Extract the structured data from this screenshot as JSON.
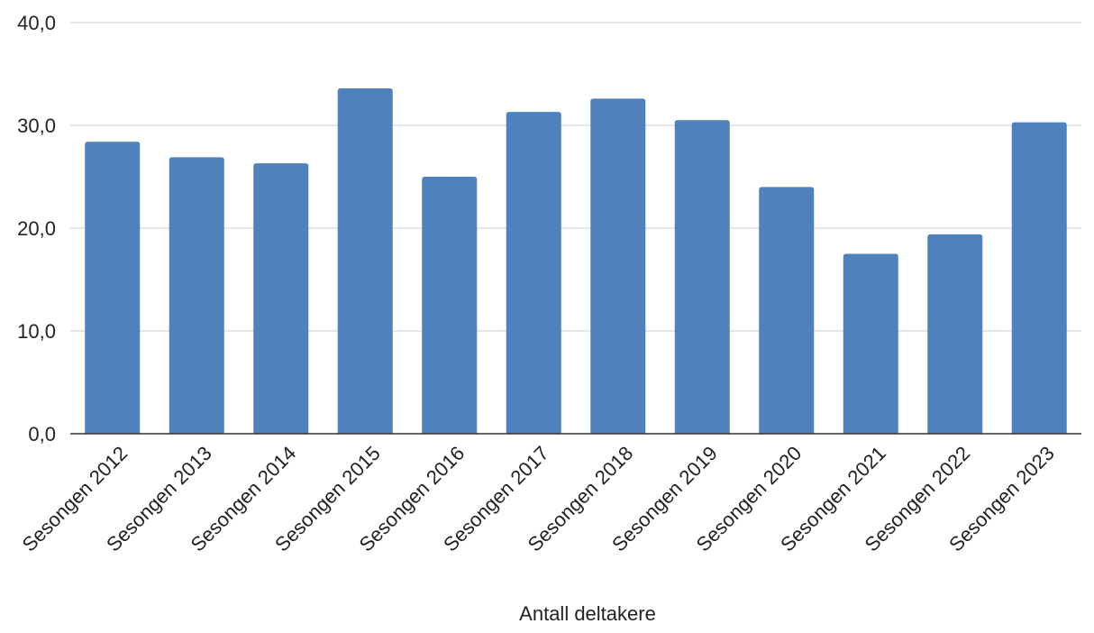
{
  "chart_data": {
    "type": "bar",
    "title": "",
    "xlabel": "Antall deltakere",
    "ylabel": "",
    "categories": [
      "Sesongen 2012",
      "Sesongen 2013",
      "Sesongen 2014",
      "Sesongen 2015",
      "Sesongen 2016",
      "Sesongen 2017",
      "Sesongen 2018",
      "Sesongen 2019",
      "Sesongen 2020",
      "Sesongen 2021",
      "Sesongen 2022",
      "Sesongen 2023"
    ],
    "series": [
      {
        "values": [
          28.4,
          26.9,
          26.3,
          33.6,
          25.0,
          31.3,
          32.6,
          30.5,
          24.0,
          17.5,
          19.4,
          30.3
        ]
      }
    ],
    "ylim": [
      0,
      40
    ],
    "yticks": [
      "0,0",
      "10,0",
      "20,0",
      "30,0",
      "40,0"
    ],
    "grid": true,
    "legend": "none",
    "colors": {
      "bar": "#4f81bd",
      "grid": "#cccccc",
      "axis": "#333333",
      "text": "#222222"
    }
  }
}
